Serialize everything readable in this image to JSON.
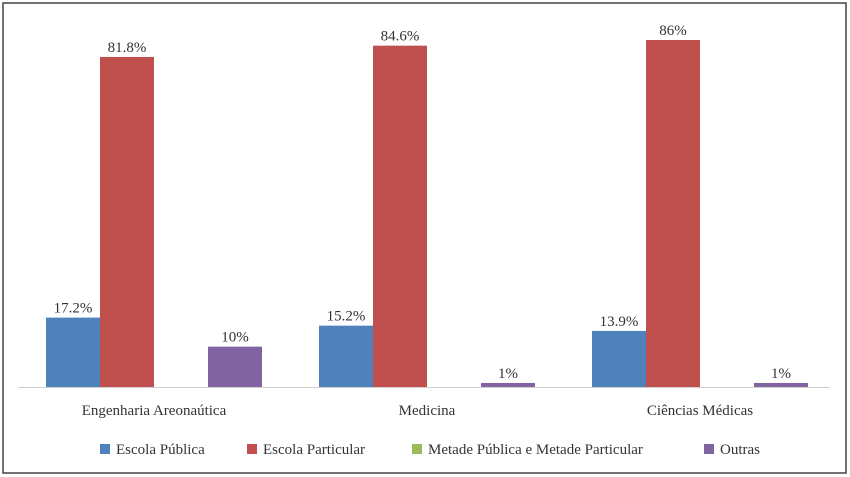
{
  "chart_data": {
    "type": "bar",
    "categories": [
      "Engenharia Areonaútica",
      "Medicina",
      "Ciências Médicas"
    ],
    "series": [
      {
        "name": "Escola Pública",
        "color": "#4f81bd",
        "values": [
          17.2,
          15.2,
          13.9
        ],
        "value_labels": [
          "17.2%",
          "15.2%",
          "13.9%"
        ]
      },
      {
        "name": "Escola Particular",
        "color": "#c0504d",
        "values": [
          81.8,
          84.6,
          86
        ],
        "value_labels": [
          "81.8%",
          "84.6%",
          "86%"
        ]
      },
      {
        "name": "Metade Pública e Metade Particular",
        "color": "#9bbb59",
        "values": [
          null,
          null,
          null
        ]
      },
      {
        "name": "Outras",
        "color": "#8064a2",
        "values": [
          10,
          1,
          1
        ],
        "value_labels": [
          "10%",
          "1%",
          "1%"
        ]
      }
    ],
    "legend": "bottom"
  }
}
